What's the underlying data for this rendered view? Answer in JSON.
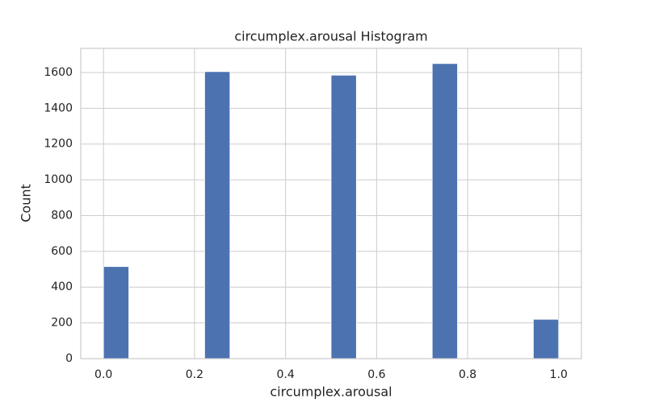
{
  "chart_data": {
    "type": "histogram",
    "title": "circumplex.arousal Histogram",
    "x_label": "circumplex.arousal",
    "y_label": "Count",
    "bins": [
      0,
      0.0556,
      0.1111,
      0.1667,
      0.2222,
      0.2778,
      0.3333,
      0.3889,
      0.4444,
      0.5,
      0.5556,
      0.6111,
      0.6667,
      0.7222,
      0.7778,
      0.8333,
      0.8889,
      0.9444,
      1.0
    ],
    "values": [
      515,
      0,
      0,
      0,
      1605,
      0,
      0,
      0,
      0,
      1585,
      0,
      0,
      0,
      1650,
      0,
      0,
      0,
      220
    ],
    "color": "#4c72b0",
    "xlim": [
      -0.05,
      1.05
    ],
    "xticks": [
      {
        "value": 0,
        "label": "0.0"
      },
      {
        "value": 0.2,
        "label": "0.2"
      },
      {
        "value": 0.4,
        "label": "0.4"
      },
      {
        "value": 0.6,
        "label": "0.6"
      },
      {
        "value": 0.8,
        "label": "0.8"
      },
      {
        "value": 1,
        "label": "1.0"
      }
    ],
    "ylim": [
      0,
      1735
    ],
    "yticks": [
      0,
      200,
      400,
      600,
      800,
      1000,
      1200,
      1400,
      1600
    ],
    "grid": true
  }
}
